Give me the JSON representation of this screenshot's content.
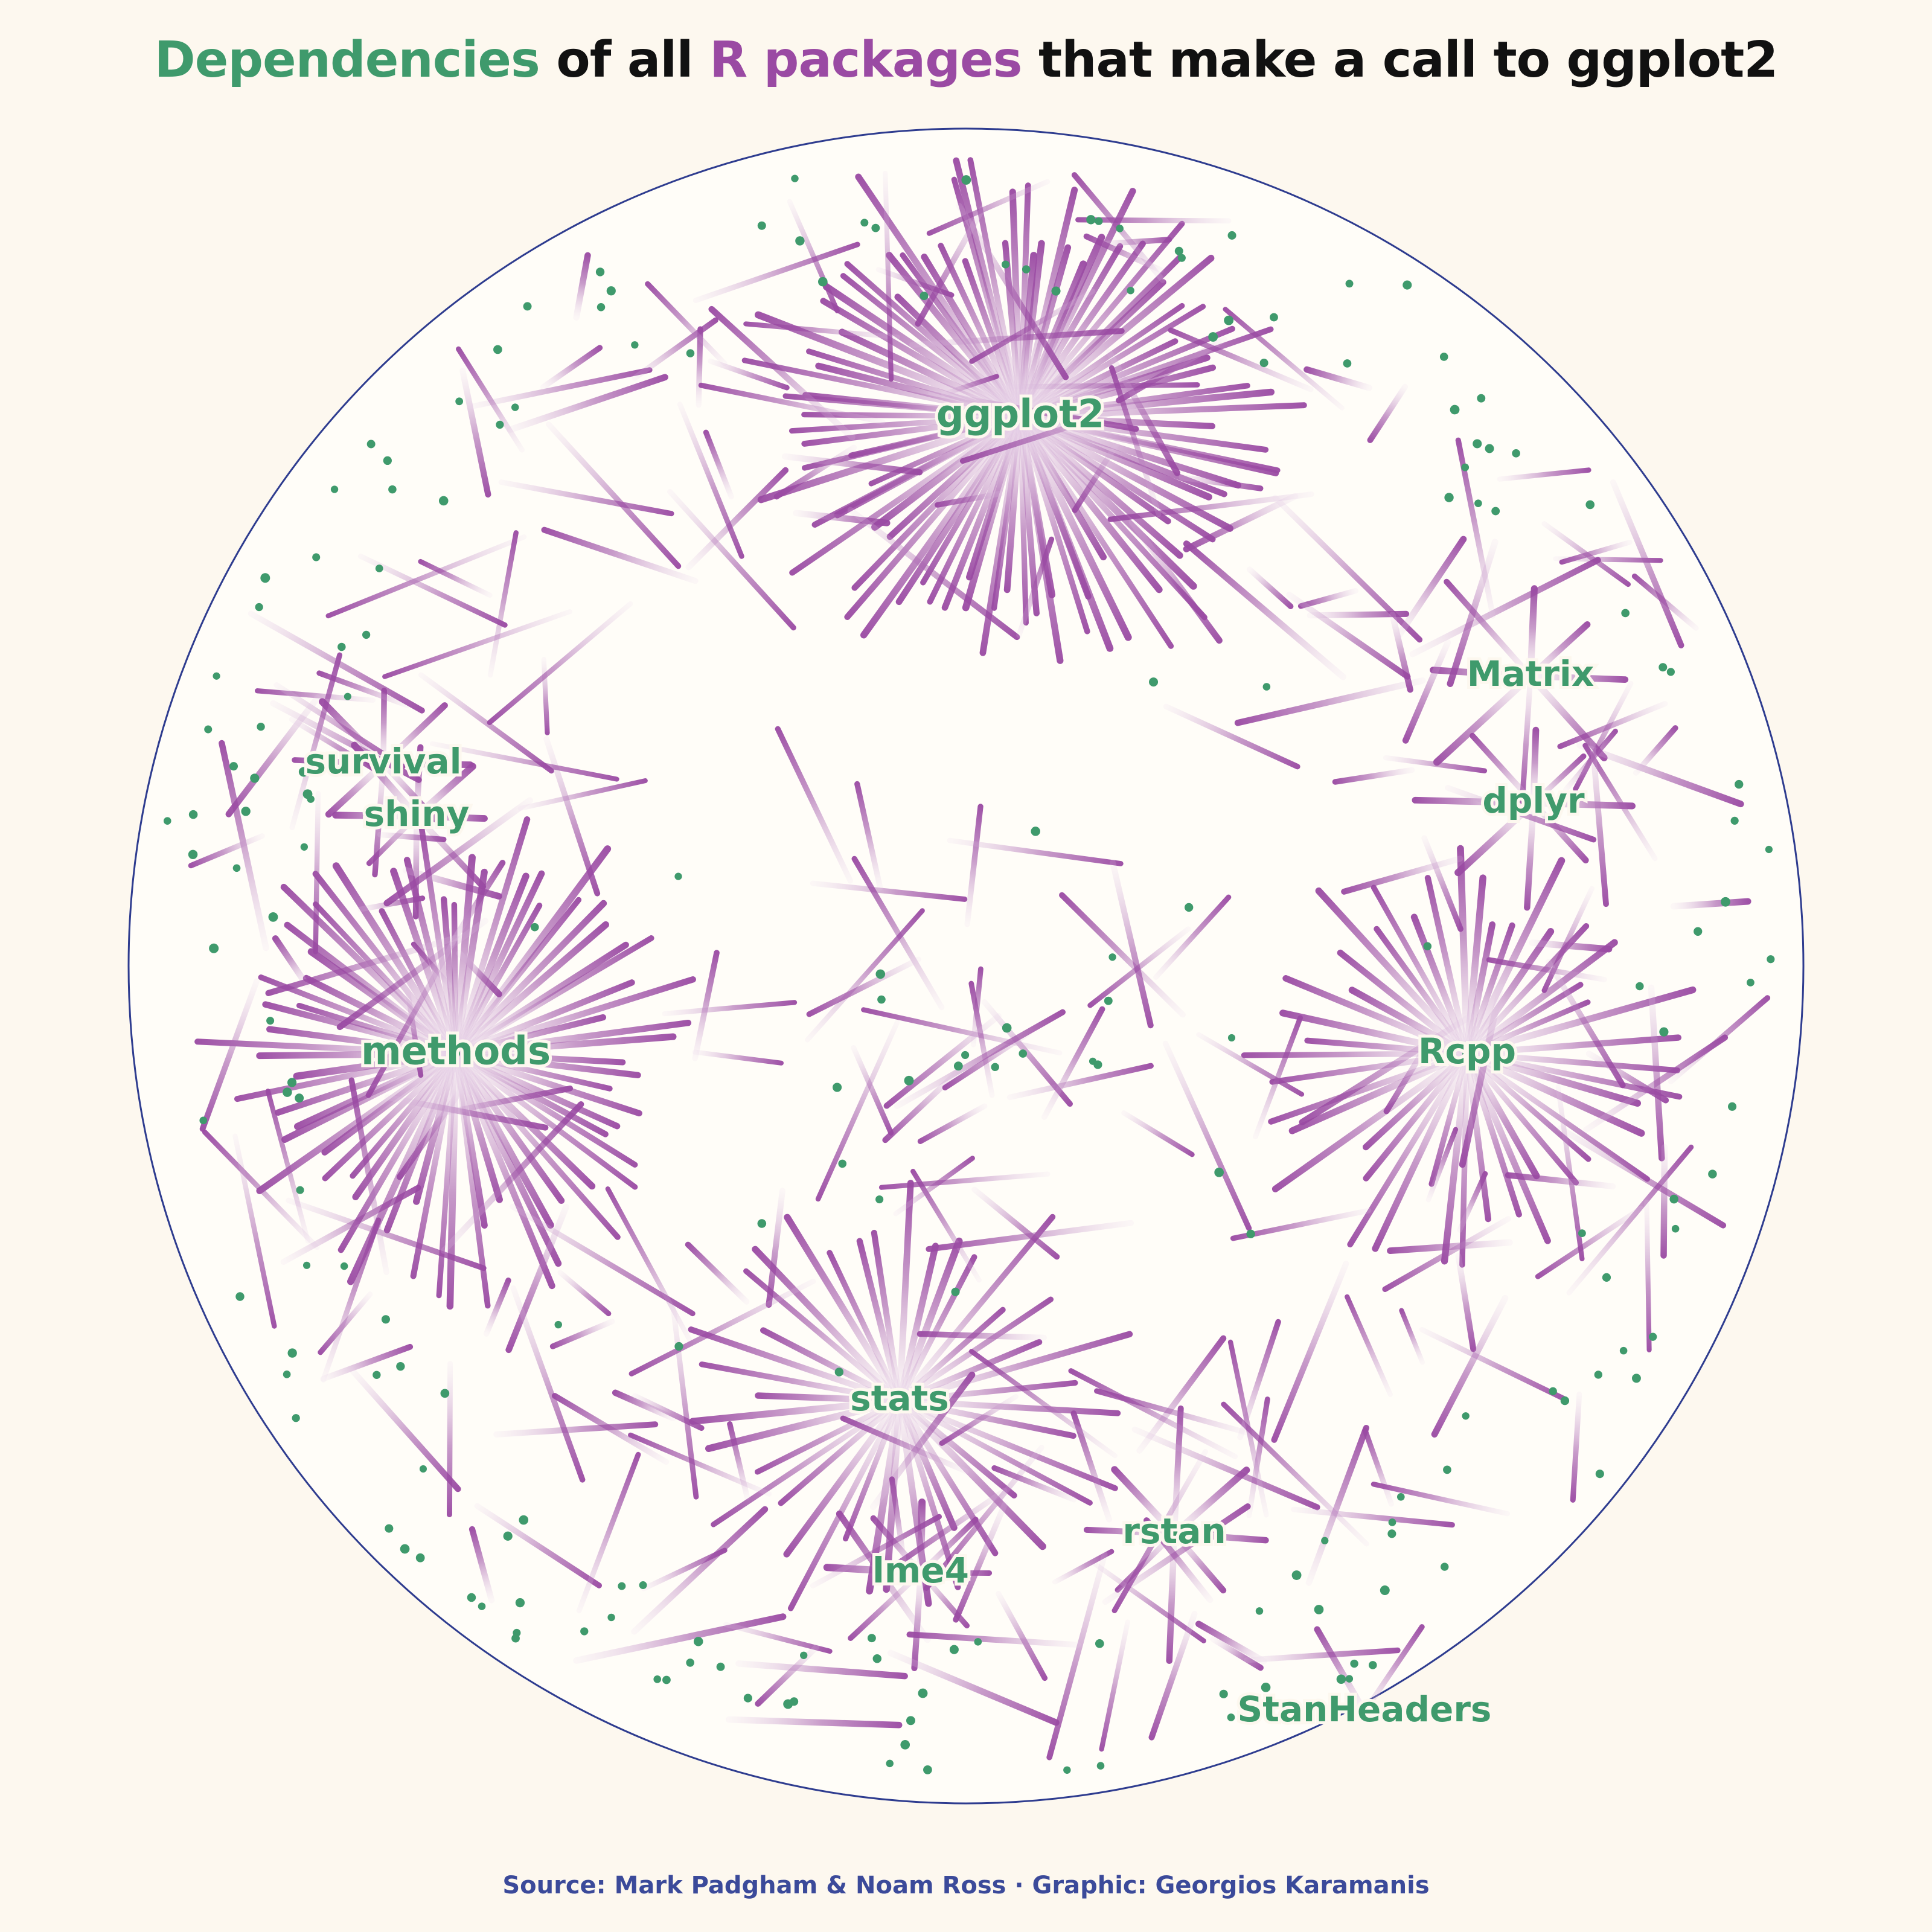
{
  "title": {
    "part1": "Dependencies",
    "part2": " of all ",
    "part3": "R packages",
    "part4": " that make a call to ggplot2"
  },
  "caption": "Source: Mark Padgham & Noam Ross · Graphic: Georgios Karamanis",
  "colors": {
    "background": "#fdf8ef",
    "circle_fill": "#fffdf8",
    "circle_stroke": "#2e3c8f",
    "edge": "#9a4aa3",
    "edge_faded": "#e8d3ea",
    "node": "#3f9a6c",
    "label": "#3f9a6c",
    "title_text": "#111111",
    "title_dependencies": "#3f9a6c",
    "title_packages": "#9a4aa3",
    "caption_text": "#3b4a9a"
  },
  "packages": [
    {
      "name": "ggplot2",
      "degree": 95
    },
    {
      "name": "methods",
      "degree": 70
    },
    {
      "name": "Rcpp",
      "degree": 45
    },
    {
      "name": "stats",
      "degree": 40
    },
    {
      "name": "survival",
      "degree": 8
    },
    {
      "name": "shiny",
      "degree": 8
    },
    {
      "name": "Matrix",
      "degree": 8
    },
    {
      "name": "dplyr",
      "degree": 8
    },
    {
      "name": "rstan",
      "degree": 8
    },
    {
      "name": "lme4",
      "degree": 8
    },
    {
      "name": "StanHeaders",
      "degree": 6
    }
  ]
}
